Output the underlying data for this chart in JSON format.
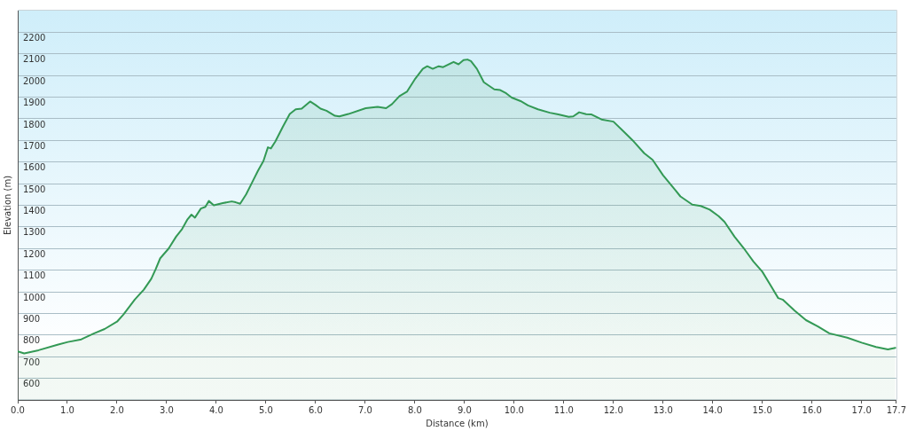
{
  "chart_data": {
    "type": "area",
    "xlabel": "Distance (km)",
    "ylabel": "Elevation (m)",
    "color": "#339955",
    "x": [
      0,
      0.13,
      0.42,
      0.8,
      1.01,
      1.28,
      1.54,
      1.75,
      2.0,
      2.13,
      2.36,
      2.54,
      2.69,
      2.78,
      2.87,
      3.04,
      3.19,
      3.31,
      3.42,
      3.5,
      3.57,
      3.69,
      3.78,
      3.85,
      3.95,
      4.13,
      4.31,
      4.39,
      4.48,
      4.6,
      4.72,
      4.84,
      4.95,
      5.04,
      5.1,
      5.19,
      5.34,
      5.48,
      5.6,
      5.72,
      5.89,
      6.0,
      6.1,
      6.22,
      6.39,
      6.48,
      6.66,
      7.01,
      7.25,
      7.42,
      7.54,
      7.69,
      7.84,
      8.01,
      8.16,
      8.25,
      8.36,
      8.48,
      8.57,
      8.78,
      8.88,
      8.98,
      9.06,
      9.13,
      9.25,
      9.39,
      9.6,
      9.72,
      9.84,
      9.95,
      10.13,
      10.28,
      10.48,
      10.72,
      10.89,
      11.1,
      11.19,
      11.31,
      11.45,
      11.56,
      11.76,
      12.0,
      12.21,
      12.41,
      12.62,
      12.79,
      13.0,
      13.24,
      13.35,
      13.59,
      13.76,
      13.94,
      14.12,
      14.24,
      14.44,
      14.65,
      14.82,
      15.0,
      15.18,
      15.32,
      15.41,
      15.65,
      15.88,
      16.12,
      16.35,
      16.71,
      17.0,
      17.29,
      17.53,
      17.68
    ],
    "values": [
      725,
      715,
      730,
      755,
      768,
      780,
      808,
      828,
      862,
      895,
      965,
      1010,
      1060,
      1105,
      1155,
      1200,
      1255,
      1290,
      1335,
      1357,
      1343,
      1385,
      1393,
      1420,
      1400,
      1410,
      1418,
      1414,
      1407,
      1450,
      1505,
      1560,
      1605,
      1668,
      1663,
      1695,
      1763,
      1822,
      1844,
      1847,
      1880,
      1864,
      1847,
      1837,
      1814,
      1811,
      1822,
      1849,
      1855,
      1849,
      1868,
      1905,
      1925,
      1986,
      2031,
      2043,
      2031,
      2043,
      2039,
      2063,
      2052,
      2071,
      2074,
      2067,
      2031,
      1969,
      1936,
      1933,
      1918,
      1898,
      1882,
      1862,
      1844,
      1828,
      1820,
      1809,
      1811,
      1830,
      1821,
      1820,
      1797,
      1787,
      1740,
      1695,
      1641,
      1610,
      1539,
      1472,
      1441,
      1403,
      1397,
      1380,
      1350,
      1323,
      1255,
      1194,
      1140,
      1093,
      1025,
      971,
      964,
      913,
      869,
      840,
      808,
      788,
      765,
      745,
      734,
      741
    ],
    "xlim": [
      0,
      17.7
    ],
    "xticks": [
      {
        "value": 0,
        "label": "0.0"
      },
      {
        "value": 1,
        "label": "1.0"
      },
      {
        "value": 2,
        "label": "2.0"
      },
      {
        "value": 3,
        "label": "3.0"
      },
      {
        "value": 4,
        "label": "4.0"
      },
      {
        "value": 5,
        "label": "5.0"
      },
      {
        "value": 6,
        "label": "6.0"
      },
      {
        "value": 7,
        "label": "7.0"
      },
      {
        "value": 8,
        "label": "8.0"
      },
      {
        "value": 9,
        "label": "9.0"
      },
      {
        "value": 10,
        "label": "10.0"
      },
      {
        "value": 11,
        "label": "11.0"
      },
      {
        "value": 12,
        "label": "12.0"
      },
      {
        "value": 13,
        "label": "13.0"
      },
      {
        "value": 14,
        "label": "14.0"
      },
      {
        "value": 15,
        "label": "15.0"
      },
      {
        "value": 16,
        "label": "16.0"
      },
      {
        "value": 17,
        "label": "17.0"
      },
      {
        "value": 17.7,
        "label": "17.7"
      }
    ],
    "ylim": [
      500,
      2300
    ],
    "yticks": [
      600,
      700,
      800,
      900,
      1000,
      1100,
      1200,
      1300,
      1400,
      1500,
      1600,
      1700,
      1800,
      1900,
      2000,
      2100,
      2200
    ],
    "grid": "y"
  }
}
